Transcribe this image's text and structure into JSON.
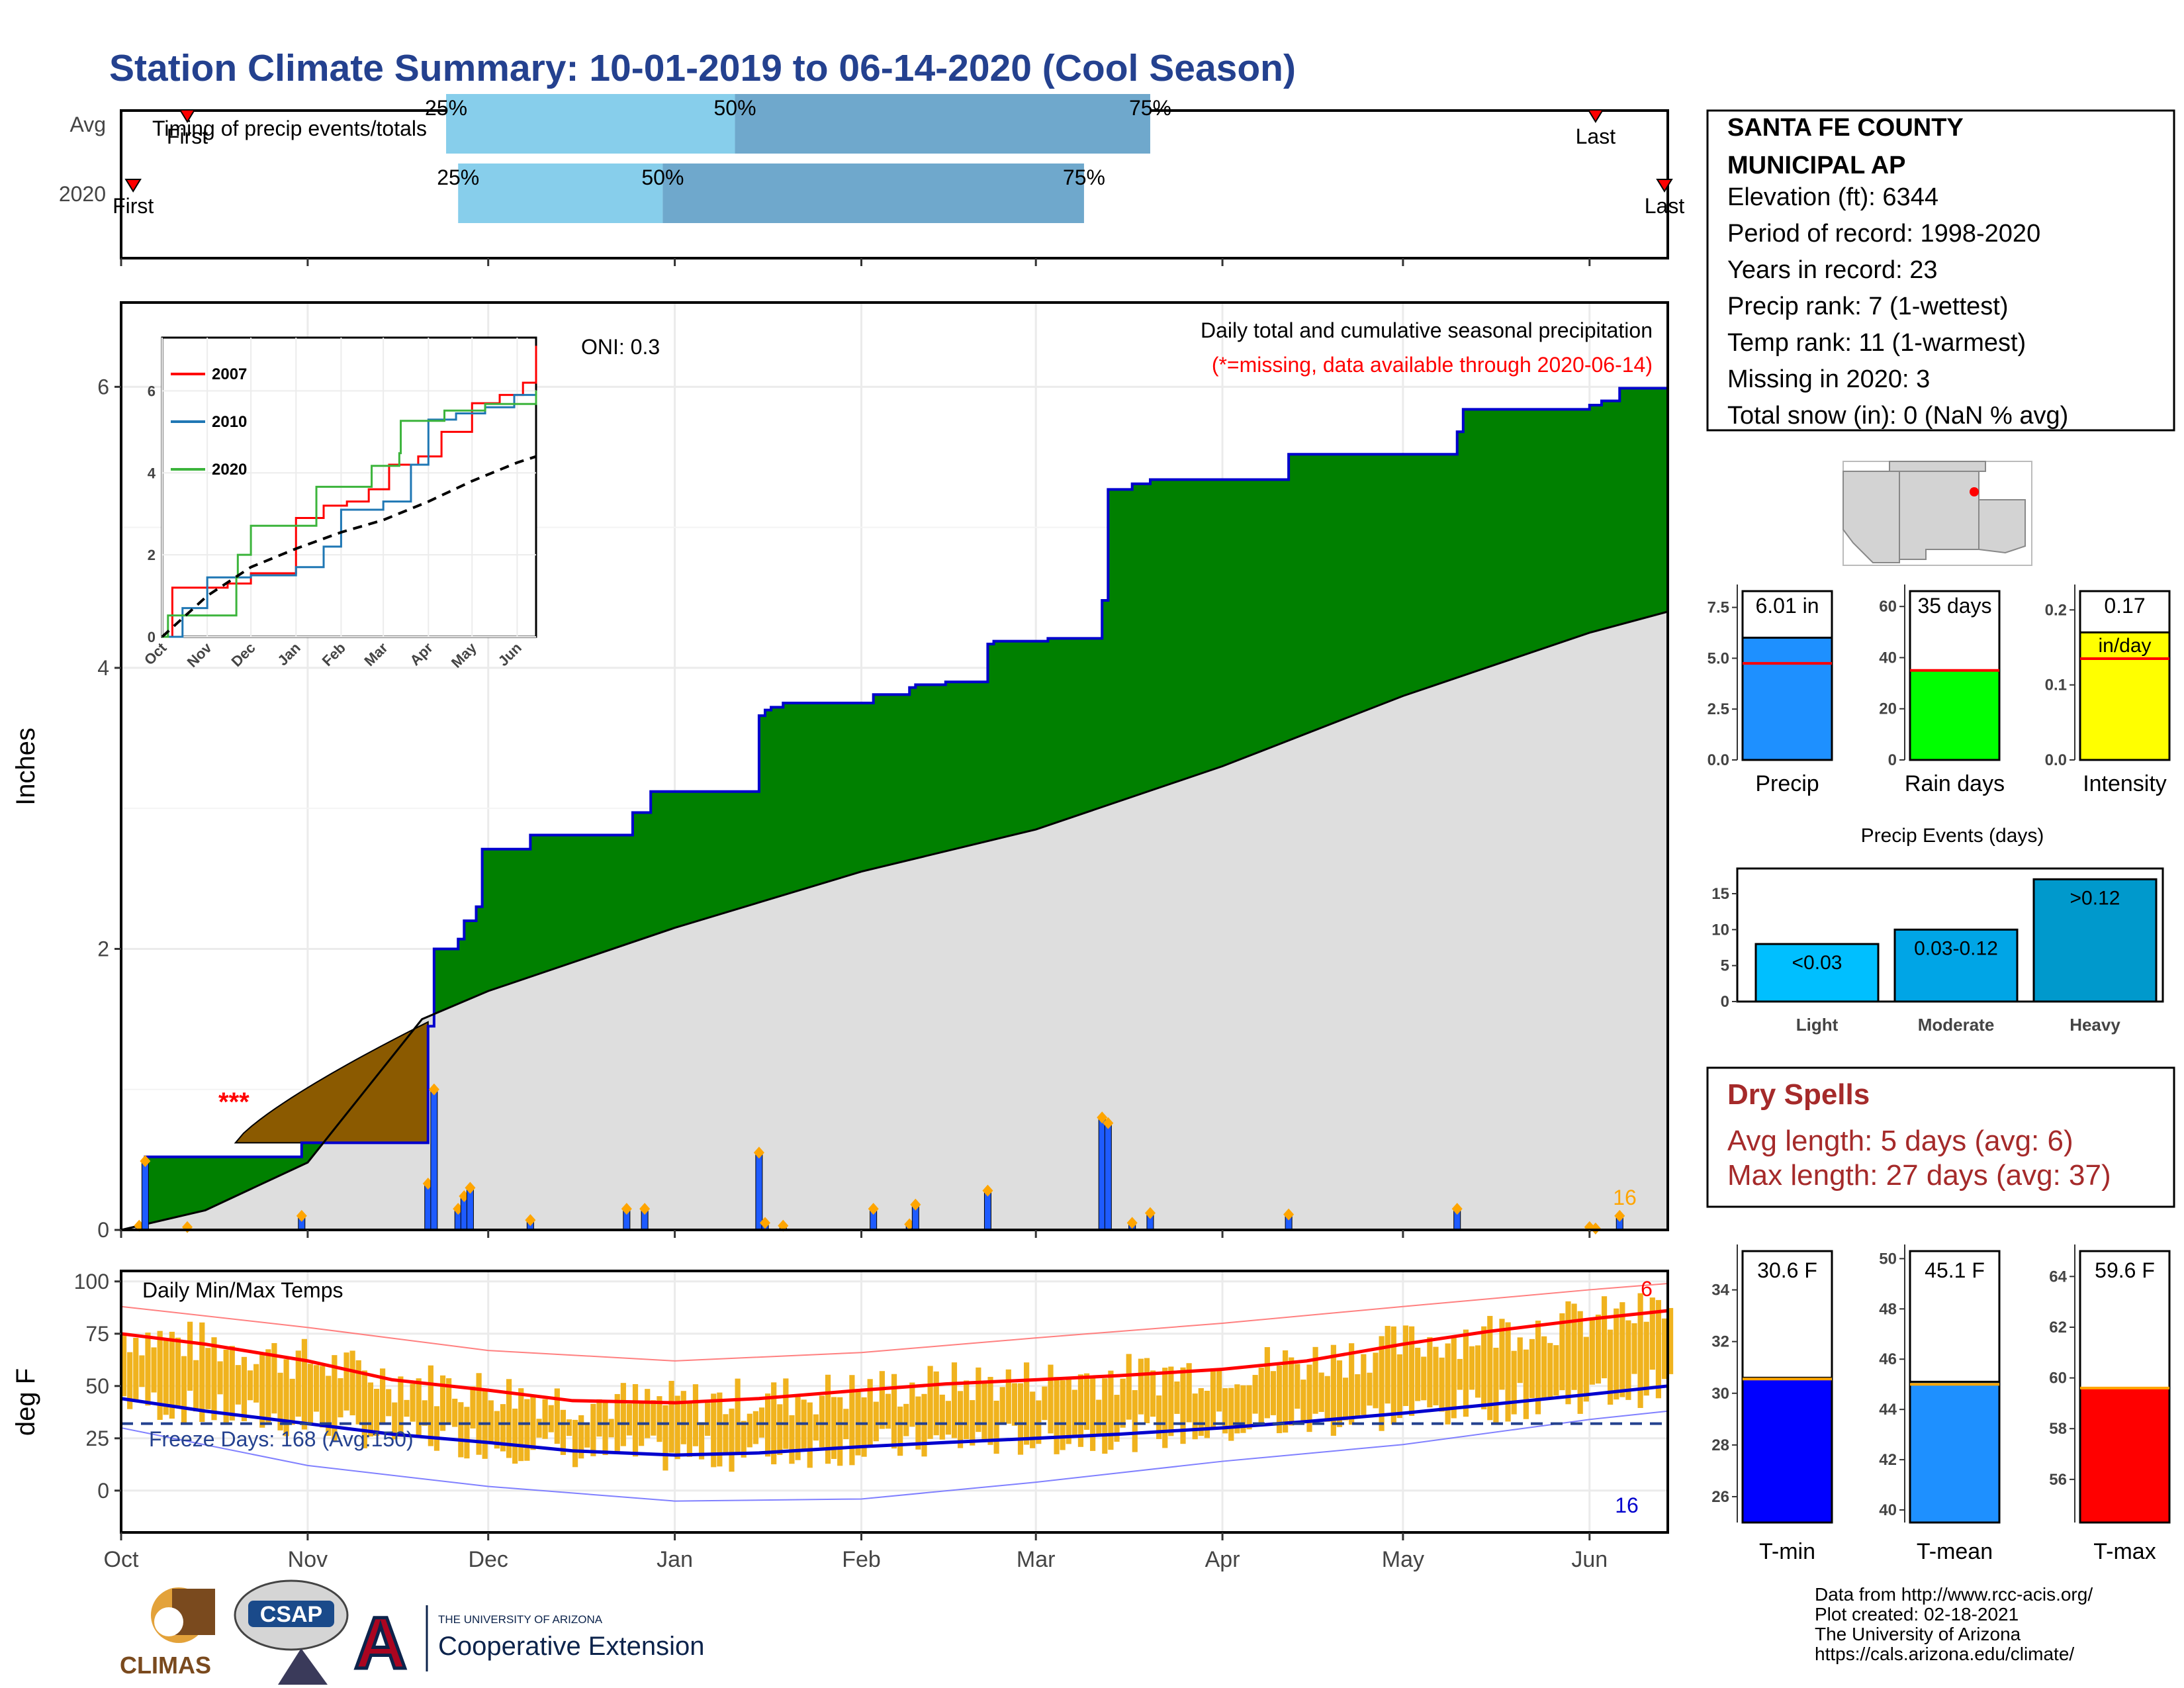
{
  "title": "Station Climate Summary: 10-01-2019 to 06-14-2020 (Cool Season)",
  "colors": {
    "title": "#24418f",
    "light_blue": "#87ceeb",
    "mid_blue": "#6fa8cc",
    "green": "#008000",
    "brown": "#8b5a00",
    "gray_fill": "#dedede",
    "navy": "#0000cd",
    "bar_blue": "#1e5bff",
    "orange": "#ffa500",
    "red": "#ff0000",
    "dry_red": "#a52a2a",
    "temp_bar": "#f0b31e",
    "precip_box": "#1e90ff",
    "rain_box": "#00ff00",
    "intensity_box": "#ffff00",
    "event_light": "#00bfff",
    "event_mod": "#00a5e6",
    "event_heavy": "#0099cc",
    "tmin": "#0000ff",
    "tmean": "#1e90ff",
    "tmax": "#ff0000"
  },
  "timing": {
    "label": "Timing of precip events/totals",
    "rows": [
      {
        "name": "Avg",
        "first": "First",
        "last": "Last",
        "p25": "25%",
        "p50": "50%",
        "p75": "75%",
        "first_date": "2019-10-12",
        "p25_date": "2019-11-24",
        "p50_date": "2020-01-11",
        "p75_date": "2020-03-20",
        "last_date": "2020-06-02"
      },
      {
        "name": "2020",
        "first": "First",
        "last": "Last",
        "p25": "25%",
        "p50": "50%",
        "p75": "75%",
        "first_date": "2019-10-03",
        "p25_date": "2019-11-26",
        "p50_date": "2019-12-30",
        "p75_date": "2020-03-09",
        "last_date": "2020-06-14"
      }
    ]
  },
  "precip_panel": {
    "ylabel": "Inches",
    "oni": "ONI: 0.3",
    "note": "Daily total and cumulative seasonal precipitation",
    "missing_note": "(*=missing, data available through 2020-06-14)",
    "missing_marker": "***",
    "count_label": "16"
  },
  "inset": {
    "legend": [
      "2007",
      "2010",
      "2020"
    ],
    "x_ticks": [
      "Oct",
      "Nov",
      "Dec",
      "Jan",
      "Feb",
      "Mar",
      "Apr",
      "May",
      "Jun"
    ],
    "y_ticks": [
      "0",
      "2",
      "4",
      "6"
    ]
  },
  "temp_panel": {
    "ylabel": "deg F",
    "label": "Daily Min/Max Temps",
    "freeze": "Freeze Days: 168 (Avg:150)",
    "hot_count": "6",
    "cold_count": "16"
  },
  "x_axis": {
    "months": [
      "Oct",
      "Nov",
      "Dec",
      "Jan",
      "Feb",
      "Mar",
      "Apr",
      "May",
      "Jun"
    ]
  },
  "station": {
    "name1": "SANTA FE COUNTY",
    "name2": "MUNICIPAL AP",
    "lines": [
      "Elevation (ft): 6344",
      "Period of record: 1998-2020",
      "Years in record: 23",
      "Precip rank: 7 (1-wettest)",
      "Temp rank: 11 (1-warmest)",
      "Missing in 2020: 3",
      "Total snow (in): 0 (NaN % avg)"
    ]
  },
  "mini_bars": [
    {
      "label": "Precip",
      "value_text": "6.01 in",
      "value": 6.01,
      "avg": 4.75,
      "ylim": [
        0,
        8.3
      ],
      "ticks": [
        "0.0",
        "2.5",
        "5.0",
        "7.5"
      ],
      "tick_vals": [
        0,
        2.5,
        5,
        7.5
      ]
    },
    {
      "label": "Rain days",
      "value_text": "35 days",
      "value": 35,
      "avg": 35,
      "ylim": [
        0,
        66
      ],
      "ticks": [
        "0",
        "20",
        "40",
        "60"
      ],
      "tick_vals": [
        0,
        20,
        40,
        60
      ]
    },
    {
      "label": "Intensity",
      "value_text": "0.17",
      "value_text2": "in/day",
      "value": 0.17,
      "avg": 0.135,
      "ylim": [
        0,
        0.225
      ],
      "ticks": [
        "0.0",
        "0.1",
        "0.2"
      ],
      "tick_vals": [
        0,
        0.1,
        0.2
      ]
    }
  ],
  "events": {
    "title": "Precip Events (days)",
    "categories": [
      "Light",
      "Moderate",
      "Heavy"
    ],
    "labels": [
      "<0.03",
      "0.03-0.12",
      ">0.12"
    ],
    "values": [
      8,
      10,
      17
    ],
    "ticks": [
      "0",
      "5",
      "10",
      "15"
    ]
  },
  "dry_spells": {
    "title": "Dry Spells",
    "line1": "Avg length: 5 days (avg: 6)",
    "line2": "Max length: 27 days (avg: 37)"
  },
  "temp_bars": [
    {
      "label": "T-min",
      "value_text": "30.6 F",
      "value": 30.6,
      "avg": 30.55,
      "ylim": [
        25,
        35.5
      ],
      "ticks": [
        "26",
        "28",
        "30",
        "32",
        "34"
      ],
      "tick_vals": [
        26,
        28,
        30,
        32,
        34
      ]
    },
    {
      "label": "T-mean",
      "value_text": "45.1 F",
      "value": 45.1,
      "avg": 45.0,
      "ylim": [
        39.5,
        50.3
      ],
      "ticks": [
        "40",
        "42",
        "44",
        "46",
        "48",
        "50"
      ],
      "tick_vals": [
        40,
        42,
        44,
        46,
        48,
        50
      ]
    },
    {
      "label": "T-max",
      "value_text": "59.6 F",
      "value": 59.6,
      "avg": 59.6,
      "ylim": [
        54.3,
        65.0
      ],
      "ticks": [
        "56",
        "58",
        "60",
        "62",
        "64"
      ],
      "tick_vals": [
        56,
        58,
        60,
        62,
        64
      ]
    }
  ],
  "footer": {
    "climas": "CLIMAS",
    "csap": "CSAP",
    "ua_small": "THE UNIVERSITY OF ARIZONA",
    "coop": "Cooperative Extension",
    "credits": [
      "Data from http://www.rcc-acis.org/",
      "Plot created: 02-18-2021",
      "The University of Arizona",
      "https://cals.arizona.edu/climate/"
    ]
  },
  "chart_data": {
    "type": "area",
    "title": "Daily total and cumulative seasonal precipitation",
    "ylabel": "Inches",
    "ylim": [
      0,
      6.6
    ],
    "xlim": [
      "2019-10-01",
      "2020-06-14"
    ],
    "cumulative_2020": {
      "dates": [
        "2019-10-01",
        "2019-10-04",
        "2019-10-05",
        "2019-10-31",
        "2019-11-21",
        "2019-11-22",
        "2019-11-26",
        "2019-11-27",
        "2019-11-29",
        "2019-11-30",
        "2019-12-01",
        "2019-12-08",
        "2019-12-25",
        "2019-12-28",
        "2020-01-15",
        "2020-01-16",
        "2020-01-17",
        "2020-01-19",
        "2020-02-03",
        "2020-02-09",
        "2020-02-10",
        "2020-02-15",
        "2020-02-22",
        "2020-02-23",
        "2020-03-03",
        "2020-03-12",
        "2020-03-13",
        "2020-03-17",
        "2020-03-20",
        "2020-04-12",
        "2020-05-10",
        "2020-05-11",
        "2020-06-01",
        "2020-06-02",
        "2020-06-03",
        "2020-06-06",
        "2020-06-14"
      ],
      "values": [
        0.0,
        0.03,
        0.52,
        0.62,
        1.45,
        2.0,
        2.07,
        2.2,
        2.3,
        2.71,
        2.71,
        2.81,
        2.97,
        3.12,
        3.66,
        3.7,
        3.72,
        3.75,
        3.81,
        3.86,
        3.88,
        3.9,
        4.17,
        4.19,
        4.21,
        4.48,
        5.27,
        5.31,
        5.34,
        5.52,
        5.68,
        5.84,
        5.87,
        5.87,
        5.9,
        5.99,
        6.01
      ]
    },
    "average_cumulative": {
      "dates": [
        "2019-10-01",
        "2019-10-15",
        "2019-11-01",
        "2019-11-20",
        "2019-12-01",
        "2020-01-01",
        "2020-02-01",
        "2020-03-01",
        "2020-04-01",
        "2020-05-01",
        "2020-06-01",
        "2020-06-14"
      ],
      "values": [
        0.0,
        0.14,
        0.48,
        1.5,
        1.7,
        2.15,
        2.55,
        2.85,
        3.3,
        3.8,
        4.25,
        4.4
      ]
    },
    "missing_period_fill": {
      "dates": [
        "2019-10-20",
        "2019-11-21"
      ],
      "values": [
        0.62,
        1.48
      ]
    },
    "daily_precip": {
      "dates": [
        "2019-10-04",
        "2019-10-05",
        "2019-10-12",
        "2019-10-31",
        "2019-11-21",
        "2019-11-22",
        "2019-11-26",
        "2019-11-27",
        "2019-11-28",
        "2019-12-08",
        "2019-12-24",
        "2019-12-27",
        "2020-01-15",
        "2020-01-16",
        "2020-01-19",
        "2020-02-03",
        "2020-02-09",
        "2020-02-10",
        "2020-02-22",
        "2020-03-12",
        "2020-03-13",
        "2020-03-17",
        "2020-03-20",
        "2020-04-12",
        "2020-05-10",
        "2020-06-01",
        "2020-06-02",
        "2020-06-06"
      ],
      "values": [
        0.03,
        0.49,
        0.02,
        0.1,
        0.33,
        1.0,
        0.15,
        0.24,
        0.3,
        0.07,
        0.15,
        0.15,
        0.55,
        0.05,
        0.03,
        0.15,
        0.04,
        0.18,
        0.28,
        0.8,
        0.76,
        0.05,
        0.12,
        0.11,
        0.15,
        0.02,
        0.01,
        0.1
      ]
    },
    "inset_series": [
      {
        "name": "2007",
        "dates": [
          "2019-10-01",
          "2019-10-08",
          "2019-11-15",
          "2019-12-01",
          "2020-01-01",
          "2020-01-20",
          "2020-02-05",
          "2020-02-20",
          "2020-03-05",
          "2020-03-25",
          "2020-04-10",
          "2020-05-01",
          "2020-05-20",
          "2020-06-05",
          "2020-06-14"
        ],
        "values": [
          0.0,
          1.2,
          1.3,
          1.55,
          2.9,
          3.2,
          3.3,
          3.6,
          4.2,
          4.4,
          5.0,
          5.7,
          5.9,
          6.2,
          7.1
        ]
      },
      {
        "name": "2010",
        "dates": [
          "2019-10-01",
          "2019-10-15",
          "2019-11-01",
          "2019-12-01",
          "2020-01-01",
          "2020-01-20",
          "2020-02-01",
          "2020-03-01",
          "2020-03-20",
          "2020-04-01",
          "2020-04-20",
          "2020-05-10",
          "2020-05-30",
          "2020-06-14"
        ],
        "values": [
          0.0,
          0.7,
          1.45,
          1.5,
          1.7,
          2.2,
          3.1,
          3.3,
          4.2,
          5.3,
          5.45,
          5.6,
          5.9,
          5.95
        ]
      },
      {
        "name": "2020",
        "dates": [
          "2019-10-01",
          "2019-10-05",
          "2019-11-21",
          "2019-11-22",
          "2019-12-01",
          "2020-01-15",
          "2020-02-22",
          "2020-03-12",
          "2020-03-13",
          "2020-04-12",
          "2020-05-10",
          "2020-06-14"
        ],
        "values": [
          0.0,
          0.52,
          1.45,
          2.0,
          2.71,
          3.66,
          4.17,
          4.48,
          5.27,
          5.52,
          5.68,
          6.01
        ]
      },
      {
        "name": "average",
        "dates": [
          "2019-10-01",
          "2019-11-01",
          "2019-12-01",
          "2020-01-01",
          "2020-02-01",
          "2020-03-01",
          "2020-04-01",
          "2020-05-01",
          "2020-06-01",
          "2020-06-14"
        ],
        "values": [
          0.0,
          1.0,
          1.7,
          2.15,
          2.55,
          2.85,
          3.3,
          3.8,
          4.25,
          4.4
        ]
      }
    ],
    "temps": {
      "ylabel": "deg F",
      "ylim": [
        -20,
        105
      ],
      "freeze_line": 32,
      "tmax_smooth": {
        "dates": [
          "2019-10-01",
          "2019-10-15",
          "2019-11-01",
          "2019-11-15",
          "2019-12-01",
          "2019-12-15",
          "2020-01-01",
          "2020-01-15",
          "2020-02-01",
          "2020-02-15",
          "2020-03-01",
          "2020-03-15",
          "2020-04-01",
          "2020-04-15",
          "2020-05-01",
          "2020-05-15",
          "2020-06-01",
          "2020-06-14"
        ],
        "values": [
          75,
          70,
          62,
          53,
          48,
          43,
          42,
          44,
          48,
          51,
          53,
          55,
          58,
          62,
          70,
          76,
          82,
          86
        ]
      },
      "tmin_smooth": {
        "dates": [
          "2019-10-01",
          "2019-10-15",
          "2019-11-01",
          "2019-11-15",
          "2019-12-01",
          "2019-12-15",
          "2020-01-01",
          "2020-01-15",
          "2020-02-01",
          "2020-02-15",
          "2020-03-01",
          "2020-03-15",
          "2020-04-01",
          "2020-04-15",
          "2020-05-01",
          "2020-05-15",
          "2020-06-01",
          "2020-06-14"
        ],
        "values": [
          44,
          38,
          32,
          27,
          23,
          19,
          17,
          18,
          21,
          23,
          25,
          27,
          30,
          33,
          37,
          41,
          46,
          50
        ]
      },
      "record_high": {
        "dates": [
          "2019-10-01",
          "2019-11-01",
          "2019-12-01",
          "2020-01-01",
          "2020-02-01",
          "2020-03-01",
          "2020-04-01",
          "2020-05-01",
          "2020-06-01",
          "2020-06-14"
        ],
        "values": [
          88,
          78,
          67,
          62,
          66,
          73,
          80,
          88,
          96,
          99
        ]
      },
      "record_low": {
        "dates": [
          "2019-10-01",
          "2019-11-01",
          "2019-12-01",
          "2020-01-01",
          "2020-02-01",
          "2020-03-01",
          "2020-04-01",
          "2020-05-01",
          "2020-06-01",
          "2020-06-14"
        ],
        "values": [
          30,
          12,
          2,
          -5,
          -4,
          4,
          14,
          22,
          34,
          38
        ]
      }
    }
  }
}
